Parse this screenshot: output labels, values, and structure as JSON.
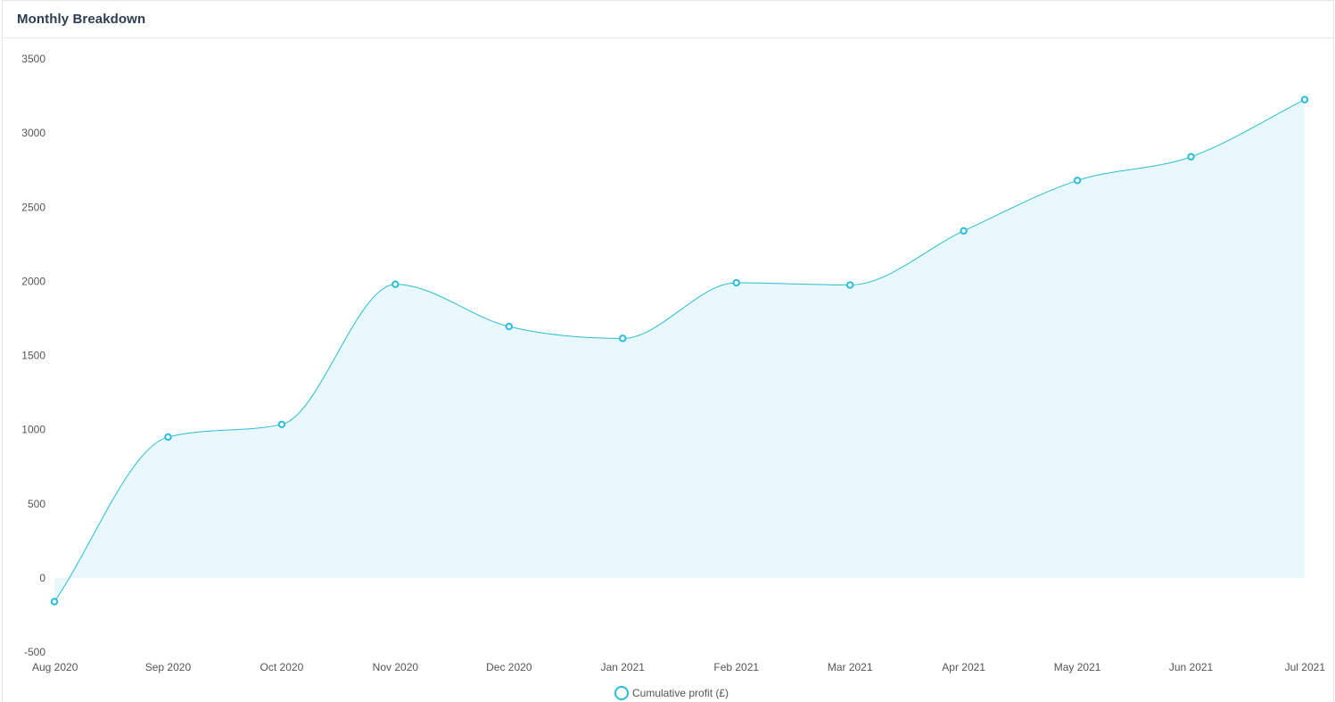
{
  "card": {
    "title": "Monthly Breakdown"
  },
  "colors": {
    "line": "#2bbcd8",
    "fill": "#e8f8fc",
    "text": "#555555",
    "title": "#2c3e50"
  },
  "chart_data": {
    "type": "area",
    "title": "",
    "xlabel": "",
    "ylabel": "",
    "categories": [
      "Aug 2020",
      "Sep 2020",
      "Oct 2020",
      "Nov 2020",
      "Dec 2020",
      "Jan 2021",
      "Feb 2021",
      "Mar 2021",
      "Apr 2021",
      "May 2021",
      "Jun 2021",
      "Jul 2021"
    ],
    "ylim": [
      -500,
      3500
    ],
    "yticks": [
      -500,
      0,
      500,
      1000,
      1500,
      2000,
      2500,
      3000,
      3500
    ],
    "grid": false,
    "legend_position": "bottom-center",
    "series": [
      {
        "name": "Cumulative profit (£)",
        "values": [
          -160,
          950,
          1035,
          1980,
          1695,
          1615,
          1990,
          1975,
          2340,
          2680,
          2840,
          3225
        ]
      }
    ]
  }
}
